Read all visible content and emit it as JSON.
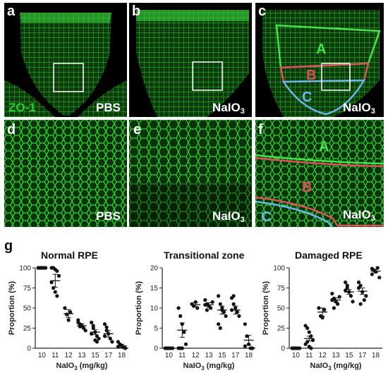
{
  "figure": {
    "panel_labels": [
      "a",
      "b",
      "c",
      "d",
      "e",
      "f",
      "g"
    ],
    "stain_label": "ZO-1",
    "condition_pbs": "PBS",
    "condition_naio3_main": "NaIO",
    "condition_naio3_sub": "3",
    "zone_labels": {
      "A": "A",
      "B": "B",
      "C": "C"
    },
    "colors": {
      "zone_A": "#45e34a",
      "zone_B": "#e0505a",
      "zone_C": "#6ab7e8",
      "stain": "#2bd12b"
    }
  },
  "charts": {
    "xlabel_main": "NaIO",
    "xlabel_sub": "3",
    "xlabel_unit": " (mg/kg)",
    "ylabel": "Proportion (%)"
  },
  "chart_data": [
    {
      "type": "scatter",
      "title": "Normal RPE",
      "categories": [
        "10",
        "11",
        "12",
        "13",
        "15",
        "17",
        "18"
      ],
      "ylim": [
        0,
        100
      ],
      "yticks": [
        "0",
        "25",
        "50",
        "75",
        "100"
      ],
      "points": [
        [
          100,
          100,
          100,
          100,
          100,
          100,
          100,
          100
        ],
        [
          100,
          100,
          98,
          96,
          90,
          82,
          75,
          70,
          65
        ],
        [
          50,
          42,
          35,
          45
        ],
        [
          35,
          30,
          28,
          25,
          22,
          32,
          27
        ],
        [
          32,
          25,
          20,
          15,
          12,
          18,
          28,
          10,
          8
        ],
        [
          30,
          26,
          18,
          12,
          8,
          15,
          22
        ],
        [
          8,
          5,
          3,
          1,
          0,
          2
        ]
      ],
      "means": [
        100,
        84,
        43,
        28,
        20,
        18,
        3
      ],
      "errors": [
        0,
        8,
        5,
        2.5,
        3,
        4,
        2
      ]
    },
    {
      "type": "scatter",
      "title": "Transitional zone",
      "categories": [
        "10",
        "11",
        "12",
        "13",
        "15",
        "17",
        "18"
      ],
      "ylim": [
        0,
        20
      ],
      "yticks": [
        "0",
        "5",
        "10",
        "15",
        "20"
      ],
      "points": [
        [
          0,
          0,
          0,
          0,
          0,
          0,
          0
        ],
        [
          10,
          8,
          6,
          4,
          1,
          0,
          0,
          0
        ],
        [
          11,
          10.5,
          11.5,
          10
        ],
        [
          12,
          11,
          10.5,
          10,
          11.5,
          10.8,
          9.5
        ],
        [
          13,
          11,
          10,
          9,
          8,
          6,
          5,
          9.5
        ],
        [
          12.5,
          11,
          10,
          9,
          8,
          9.5,
          13
        ],
        [
          6,
          3,
          1,
          0,
          0,
          0.5
        ]
      ],
      "means": [
        0,
        4.5,
        10.8,
        10.8,
        9.5,
        9.5,
        2
      ],
      "errors": [
        0,
        1.8,
        0.5,
        0.5,
        1,
        1,
        1.2
      ]
    },
    {
      "type": "scatter",
      "title": "Damaged RPE",
      "categories": [
        "10",
        "11",
        "12",
        "13",
        "15",
        "17",
        "18"
      ],
      "ylim": [
        0,
        100
      ],
      "yticks": [
        "0",
        "25",
        "50",
        "75",
        "100"
      ],
      "points": [
        [
          0,
          0,
          0,
          0,
          0,
          0,
          0
        ],
        [
          28,
          25,
          20,
          15,
          10,
          5,
          8,
          2,
          0
        ],
        [
          50,
          40,
          38,
          48
        ],
        [
          68,
          62,
          58,
          55,
          64,
          60,
          50
        ],
        [
          82,
          75,
          70,
          65,
          58,
          72,
          78
        ],
        [
          82,
          78,
          70,
          60,
          65,
          75,
          55
        ],
        [
          99,
          97,
          95,
          100,
          88,
          92
        ]
      ],
      "means": [
        0,
        12,
        45,
        60,
        70,
        71,
        96
      ],
      "errors": [
        0,
        3,
        5,
        2.5,
        3,
        4,
        2
      ]
    }
  ]
}
